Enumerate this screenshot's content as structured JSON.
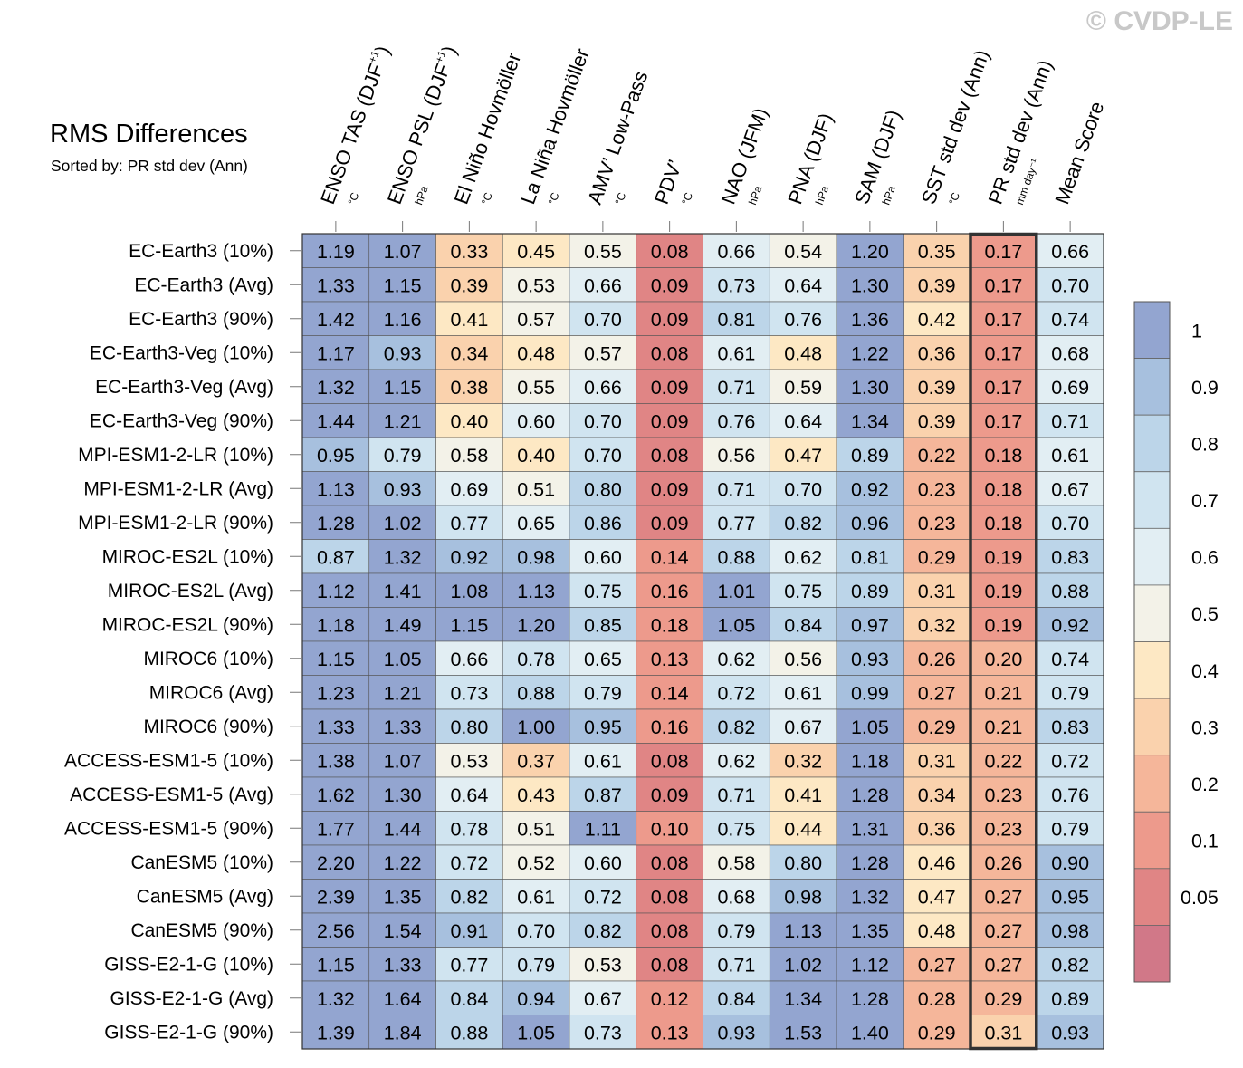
{
  "title": "RMS Differences",
  "subtitle": "Sorted by: PR std dev (Ann)",
  "watermark": "© CVDP-LE",
  "chart_data": {
    "type": "heatmap",
    "title": "RMS Differences",
    "subtitle": "Sorted by: PR std dev (Ann)",
    "columns": [
      {
        "name": "ENSO TAS (DJF",
        "sup": "+1",
        "close": ")",
        "unit": "°C"
      },
      {
        "name": "ENSO PSL (DJF",
        "sup": "+1",
        "close": ")",
        "unit": "hPa"
      },
      {
        "name": "El Niño Hovmöller",
        "sup": "",
        "close": "",
        "unit": "°C"
      },
      {
        "name": "La Niña Hovmöller",
        "sup": "",
        "close": "",
        "unit": "°C"
      },
      {
        "name": "AMV’ Low-Pass",
        "sup": "",
        "close": "",
        "unit": "°C"
      },
      {
        "name": "PDV’",
        "sup": "",
        "close": "",
        "unit": "°C"
      },
      {
        "name": "NAO (JFM)",
        "sup": "",
        "close": "",
        "unit": "hPa"
      },
      {
        "name": "PNA (DJF)",
        "sup": "",
        "close": "",
        "unit": "hPa"
      },
      {
        "name": "SAM (DJF)",
        "sup": "",
        "close": "",
        "unit": "hPa"
      },
      {
        "name": "SST std dev (Ann)",
        "sup": "",
        "close": "",
        "unit": "°C"
      },
      {
        "name": "PR std dev (Ann)",
        "sup": "",
        "close": "",
        "unit": "mm day⁻¹"
      },
      {
        "name": "Mean Score",
        "sup": "",
        "close": "",
        "unit": ""
      }
    ],
    "rows": [
      "EC-Earth3 (10%)",
      "EC-Earth3 (Avg)",
      "EC-Earth3 (90%)",
      "EC-Earth3-Veg (10%)",
      "EC-Earth3-Veg (Avg)",
      "EC-Earth3-Veg (90%)",
      "MPI-ESM1-2-LR (10%)",
      "MPI-ESM1-2-LR (Avg)",
      "MPI-ESM1-2-LR (90%)",
      "MIROC-ES2L (10%)",
      "MIROC-ES2L (Avg)",
      "MIROC-ES2L (90%)",
      "MIROC6 (10%)",
      "MIROC6 (Avg)",
      "MIROC6 (90%)",
      "ACCESS-ESM1-5 (10%)",
      "ACCESS-ESM1-5 (Avg)",
      "ACCESS-ESM1-5 (90%)",
      "CanESM5 (10%)",
      "CanESM5 (Avg)",
      "CanESM5 (90%)",
      "GISS-E2-1-G (10%)",
      "GISS-E2-1-G (Avg)",
      "GISS-E2-1-G (90%)"
    ],
    "values": [
      [
        "1.19",
        "1.07",
        "0.33",
        "0.45",
        "0.55",
        "0.08",
        "0.66",
        "0.54",
        "1.20",
        "0.35",
        "0.17",
        "0.66"
      ],
      [
        "1.33",
        "1.15",
        "0.39",
        "0.53",
        "0.66",
        "0.09",
        "0.73",
        "0.64",
        "1.30",
        "0.39",
        "0.17",
        "0.70"
      ],
      [
        "1.42",
        "1.16",
        "0.41",
        "0.57",
        "0.70",
        "0.09",
        "0.81",
        "0.76",
        "1.36",
        "0.42",
        "0.17",
        "0.74"
      ],
      [
        "1.17",
        "0.93",
        "0.34",
        "0.48",
        "0.57",
        "0.08",
        "0.61",
        "0.48",
        "1.22",
        "0.36",
        "0.17",
        "0.68"
      ],
      [
        "1.32",
        "1.15",
        "0.38",
        "0.55",
        "0.66",
        "0.09",
        "0.71",
        "0.59",
        "1.30",
        "0.39",
        "0.17",
        "0.69"
      ],
      [
        "1.44",
        "1.21",
        "0.40",
        "0.60",
        "0.70",
        "0.09",
        "0.76",
        "0.64",
        "1.34",
        "0.39",
        "0.17",
        "0.71"
      ],
      [
        "0.95",
        "0.79",
        "0.58",
        "0.40",
        "0.70",
        "0.08",
        "0.56",
        "0.47",
        "0.89",
        "0.22",
        "0.18",
        "0.61"
      ],
      [
        "1.13",
        "0.93",
        "0.69",
        "0.51",
        "0.80",
        "0.09",
        "0.71",
        "0.70",
        "0.92",
        "0.23",
        "0.18",
        "0.67"
      ],
      [
        "1.28",
        "1.02",
        "0.77",
        "0.65",
        "0.86",
        "0.09",
        "0.77",
        "0.82",
        "0.96",
        "0.23",
        "0.18",
        "0.70"
      ],
      [
        "0.87",
        "1.32",
        "0.92",
        "0.98",
        "0.60",
        "0.14",
        "0.88",
        "0.62",
        "0.81",
        "0.29",
        "0.19",
        "0.83"
      ],
      [
        "1.12",
        "1.41",
        "1.08",
        "1.13",
        "0.75",
        "0.16",
        "1.01",
        "0.75",
        "0.89",
        "0.31",
        "0.19",
        "0.88"
      ],
      [
        "1.18",
        "1.49",
        "1.15",
        "1.20",
        "0.85",
        "0.18",
        "1.05",
        "0.84",
        "0.97",
        "0.32",
        "0.19",
        "0.92"
      ],
      [
        "1.15",
        "1.05",
        "0.66",
        "0.78",
        "0.65",
        "0.13",
        "0.62",
        "0.56",
        "0.93",
        "0.26",
        "0.20",
        "0.74"
      ],
      [
        "1.23",
        "1.21",
        "0.73",
        "0.88",
        "0.79",
        "0.14",
        "0.72",
        "0.61",
        "0.99",
        "0.27",
        "0.21",
        "0.79"
      ],
      [
        "1.33",
        "1.33",
        "0.80",
        "1.00",
        "0.95",
        "0.16",
        "0.82",
        "0.67",
        "1.05",
        "0.29",
        "0.21",
        "0.83"
      ],
      [
        "1.38",
        "1.07",
        "0.53",
        "0.37",
        "0.61",
        "0.08",
        "0.62",
        "0.32",
        "1.18",
        "0.31",
        "0.22",
        "0.72"
      ],
      [
        "1.62",
        "1.30",
        "0.64",
        "0.43",
        "0.87",
        "0.09",
        "0.71",
        "0.41",
        "1.28",
        "0.34",
        "0.23",
        "0.76"
      ],
      [
        "1.77",
        "1.44",
        "0.78",
        "0.51",
        "1.11",
        "0.10",
        "0.75",
        "0.44",
        "1.31",
        "0.36",
        "0.23",
        "0.79"
      ],
      [
        "2.20",
        "1.22",
        "0.72",
        "0.52",
        "0.60",
        "0.08",
        "0.58",
        "0.80",
        "1.28",
        "0.46",
        "0.26",
        "0.90"
      ],
      [
        "2.39",
        "1.35",
        "0.82",
        "0.61",
        "0.72",
        "0.08",
        "0.68",
        "0.98",
        "1.32",
        "0.47",
        "0.27",
        "0.95"
      ],
      [
        "2.56",
        "1.54",
        "0.91",
        "0.70",
        "0.82",
        "0.08",
        "0.79",
        "1.13",
        "1.35",
        "0.48",
        "0.27",
        "0.98"
      ],
      [
        "1.15",
        "1.33",
        "0.77",
        "0.79",
        "0.53",
        "0.08",
        "0.71",
        "1.02",
        "1.12",
        "0.27",
        "0.27",
        "0.82"
      ],
      [
        "1.32",
        "1.64",
        "0.84",
        "0.94",
        "0.67",
        "0.12",
        "0.84",
        "1.34",
        "1.28",
        "0.28",
        "0.29",
        "0.89"
      ],
      [
        "1.39",
        "1.84",
        "0.88",
        "1.05",
        "0.73",
        "0.13",
        "0.93",
        "1.53",
        "1.40",
        "0.29",
        "0.31",
        "0.93"
      ]
    ],
    "highlight_column": "PR std dev (Ann)",
    "colorbar": {
      "labels": [
        "1",
        "0.9",
        "0.8",
        "0.7",
        "0.6",
        "0.5",
        "0.4",
        "0.3",
        "0.2",
        "0.1",
        "0.05"
      ],
      "levels": [
        0.05,
        0.1,
        0.2,
        0.3,
        0.4,
        0.5,
        0.6,
        0.7,
        0.8,
        0.9,
        1.0
      ],
      "colors": [
        "#d17888",
        "#e08585",
        "#ed9a8c",
        "#f5b69a",
        "#fad2ad",
        "#fde8c4",
        "#f3f2e8",
        "#e2eef3",
        "#d0e4f0",
        "#bcd5e9",
        "#a7c0de",
        "#93a5d0"
      ]
    }
  }
}
